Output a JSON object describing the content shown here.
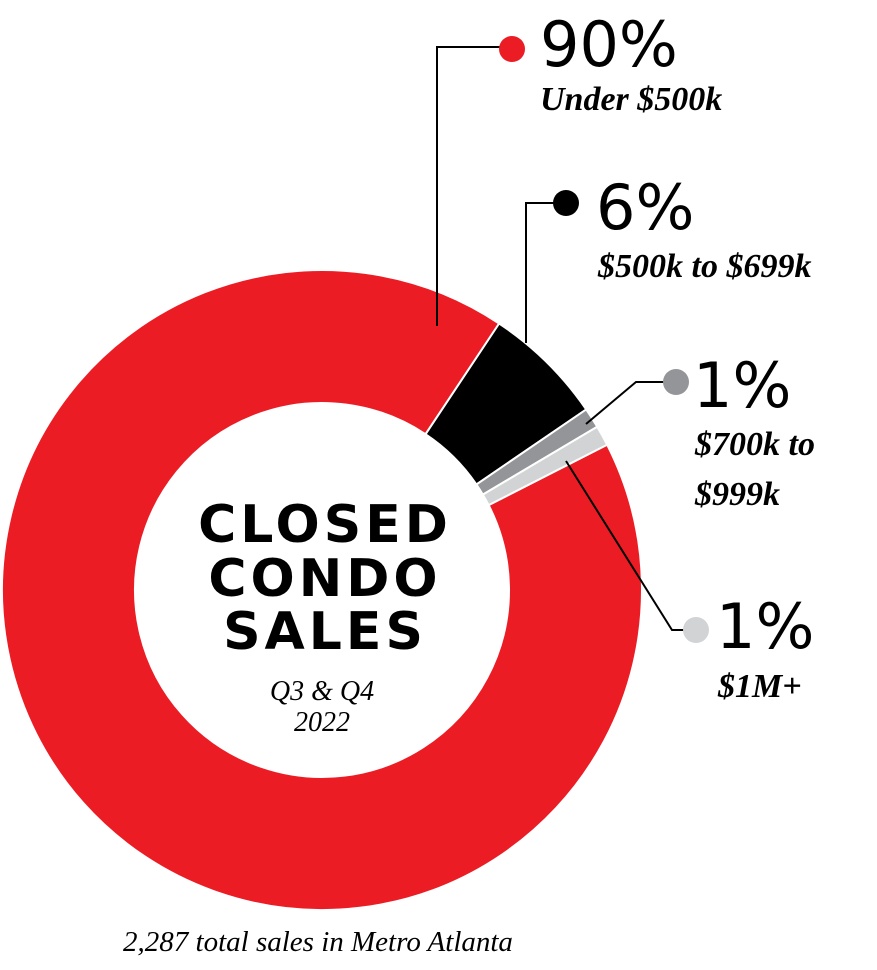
{
  "chart_data": {
    "type": "pie",
    "title": "CLOSED CONDO SALES",
    "title_lines": [
      "CLOSED",
      "CONDO",
      "SALES"
    ],
    "subtitle_lines": [
      "Q3 & Q4",
      "2022"
    ],
    "footnote": "2,287 total sales in Metro Atlanta",
    "start_angle_deg": 63,
    "slices": [
      {
        "label": "Under $500k",
        "label_lines": [
          "Under $500k"
        ],
        "percent_text": "90%",
        "value": 90,
        "color": "#ec1c24"
      },
      {
        "label": "$500k to $699k",
        "label_lines": [
          "$500k to $699k"
        ],
        "percent_text": "6%",
        "value": 6,
        "color": "#000000"
      },
      {
        "label": "$700k to $999k",
        "label_lines": [
          "$700k to",
          "$999k"
        ],
        "percent_text": "1%",
        "value": 1,
        "color": "#939598"
      },
      {
        "label": "$1M+",
        "label_lines": [
          "$1M+"
        ],
        "percent_text": "1%",
        "value": 1,
        "color": "#d1d3d4"
      }
    ]
  }
}
